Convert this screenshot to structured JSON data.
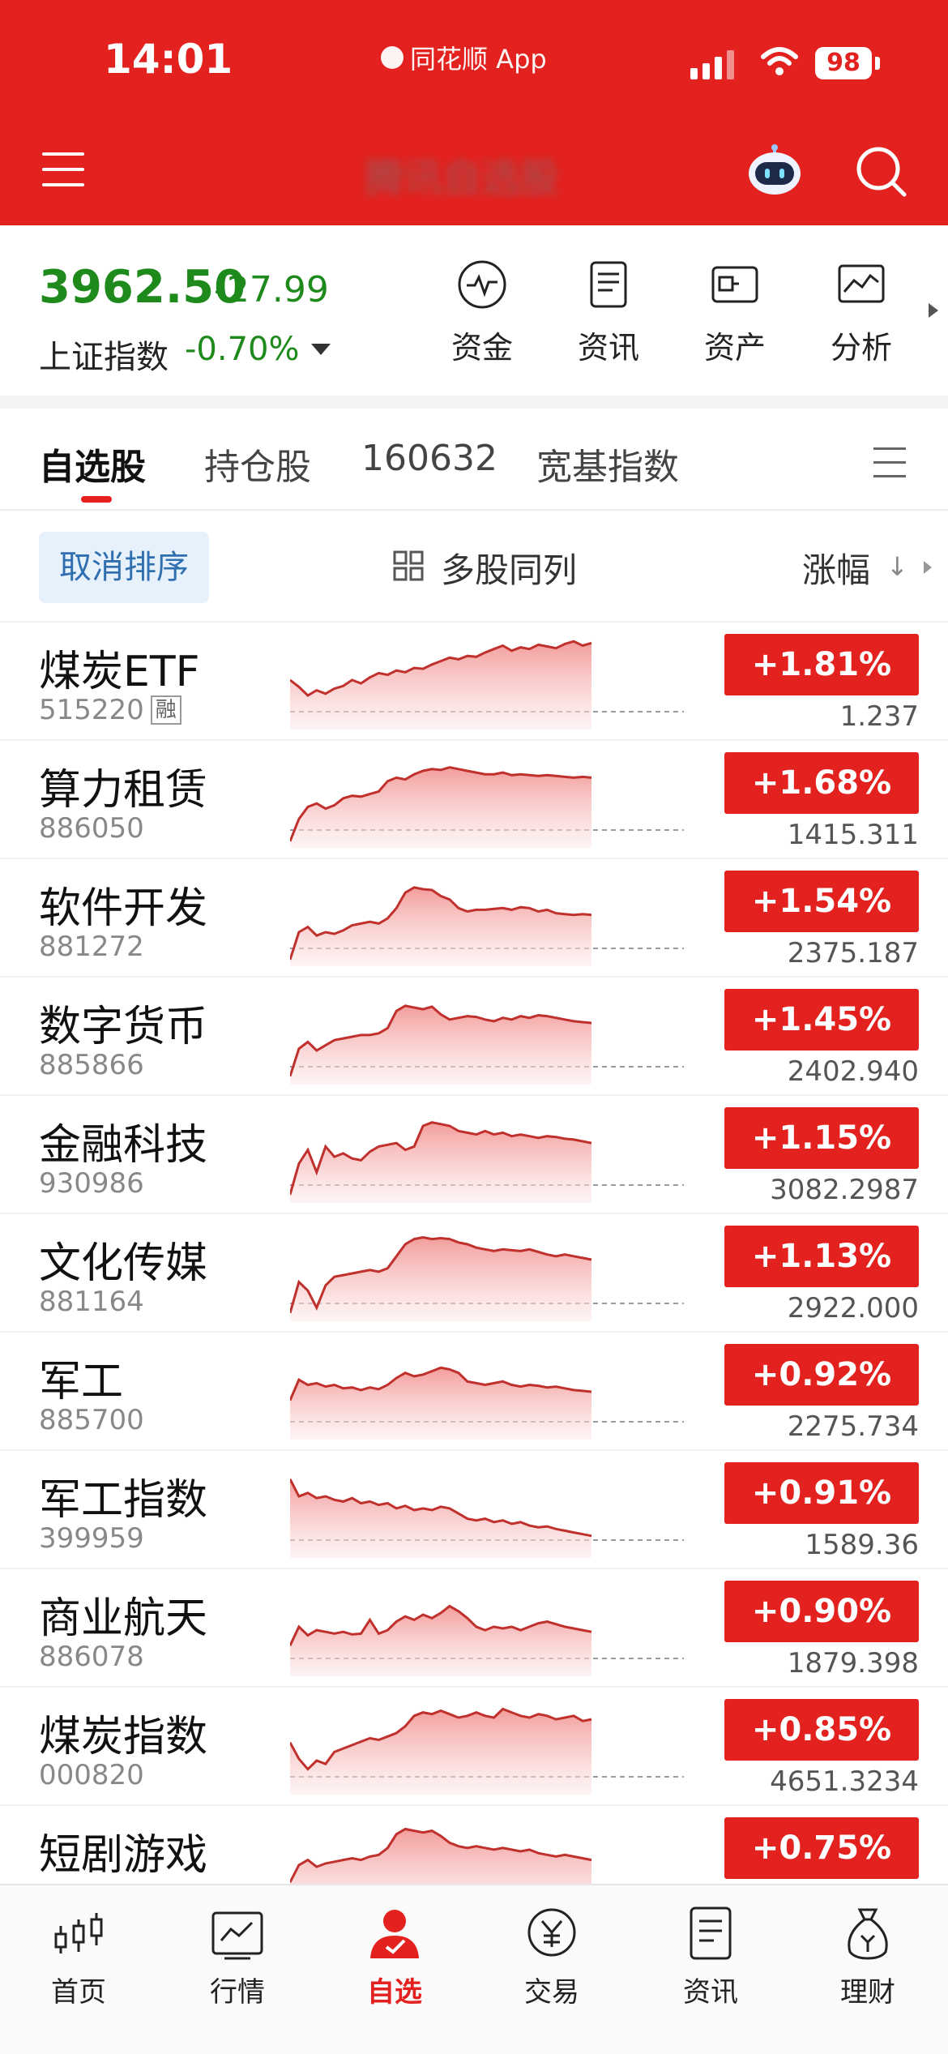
{
  "status_bar": {
    "time": "14:01",
    "app": "同花顺 App",
    "battery": "98"
  },
  "header": {
    "title": "腾讯自选股"
  },
  "index": {
    "price": "3962.50",
    "change": "-27.99",
    "name": "上证指数",
    "pct": "-0.70%"
  },
  "shortcuts": [
    {
      "label": "资金",
      "icon": "pulse-icon"
    },
    {
      "label": "资讯",
      "icon": "document-icon"
    },
    {
      "label": "资产",
      "icon": "wallet-icon"
    },
    {
      "label": "分析",
      "icon": "chart-icon"
    }
  ],
  "tabs": [
    {
      "label": "自选股",
      "active": true
    },
    {
      "label": "持仓股"
    },
    {
      "label": "160632"
    },
    {
      "label": "宽基指数"
    }
  ],
  "sort_bar": {
    "cancel": "取消排序",
    "multi": "多股同列",
    "sort_label": "涨幅",
    "sort_arrow": "↓"
  },
  "stocks": [
    {
      "name": "煤炭ETF",
      "code": "515220",
      "badge": "融",
      "pct": "+1.81%",
      "price": "1.237",
      "series": [
        0.52,
        0.44,
        0.34,
        0.4,
        0.36,
        0.42,
        0.45,
        0.52,
        0.48,
        0.55,
        0.6,
        0.58,
        0.63,
        0.61,
        0.66,
        0.65,
        0.7,
        0.74,
        0.78,
        0.76,
        0.8,
        0.79,
        0.84,
        0.88,
        0.92,
        0.86,
        0.9,
        0.88,
        0.93,
        0.91,
        0.89,
        0.94,
        0.97,
        0.92,
        0.95
      ]
    },
    {
      "name": "算力租赁",
      "code": "886050",
      "pct": "+1.68%",
      "price": "1415.311",
      "series": [
        0.02,
        0.28,
        0.42,
        0.46,
        0.4,
        0.44,
        0.52,
        0.55,
        0.54,
        0.57,
        0.6,
        0.72,
        0.76,
        0.74,
        0.8,
        0.84,
        0.86,
        0.85,
        0.88,
        0.86,
        0.84,
        0.82,
        0.8,
        0.8,
        0.82,
        0.79,
        0.8,
        0.79,
        0.78,
        0.79,
        0.78,
        0.77,
        0.76,
        0.77,
        0.76
      ]
    },
    {
      "name": "软件开发",
      "code": "881272",
      "pct": "+1.54%",
      "price": "2375.187",
      "series": [
        0.02,
        0.34,
        0.4,
        0.3,
        0.34,
        0.32,
        0.36,
        0.42,
        0.44,
        0.46,
        0.44,
        0.5,
        0.62,
        0.8,
        0.86,
        0.84,
        0.83,
        0.76,
        0.72,
        0.62,
        0.58,
        0.6,
        0.6,
        0.61,
        0.62,
        0.6,
        0.63,
        0.62,
        0.58,
        0.6,
        0.56,
        0.55,
        0.54,
        0.55,
        0.54
      ]
    },
    {
      "name": "数字货币",
      "code": "885866",
      "pct": "+1.45%",
      "price": "2402.940",
      "series": [
        0.04,
        0.36,
        0.44,
        0.34,
        0.4,
        0.46,
        0.48,
        0.5,
        0.52,
        0.52,
        0.54,
        0.6,
        0.8,
        0.86,
        0.84,
        0.82,
        0.85,
        0.76,
        0.7,
        0.72,
        0.74,
        0.73,
        0.7,
        0.68,
        0.72,
        0.7,
        0.74,
        0.72,
        0.75,
        0.74,
        0.72,
        0.7,
        0.68,
        0.67,
        0.66
      ]
    },
    {
      "name": "金融科技",
      "code": "930986",
      "pct": "+1.15%",
      "price": "3082.2987",
      "series": [
        0.04,
        0.4,
        0.56,
        0.3,
        0.6,
        0.48,
        0.52,
        0.46,
        0.44,
        0.54,
        0.6,
        0.62,
        0.64,
        0.56,
        0.6,
        0.84,
        0.88,
        0.86,
        0.84,
        0.78,
        0.76,
        0.74,
        0.78,
        0.74,
        0.76,
        0.72,
        0.74,
        0.72,
        0.7,
        0.72,
        0.71,
        0.69,
        0.68,
        0.66,
        0.64
      ]
    },
    {
      "name": "文化传媒",
      "code": "881164",
      "pct": "+1.13%",
      "price": "2922.000",
      "series": [
        0.04,
        0.4,
        0.3,
        0.1,
        0.36,
        0.46,
        0.48,
        0.5,
        0.52,
        0.54,
        0.52,
        0.56,
        0.7,
        0.84,
        0.9,
        0.92,
        0.9,
        0.91,
        0.9,
        0.86,
        0.84,
        0.8,
        0.78,
        0.76,
        0.78,
        0.77,
        0.76,
        0.78,
        0.75,
        0.72,
        0.7,
        0.72,
        0.7,
        0.68,
        0.66
      ]
    },
    {
      "name": "军工",
      "code": "885700",
      "pct": "+0.92%",
      "price": "2275.734",
      "series": [
        0.4,
        0.64,
        0.58,
        0.6,
        0.56,
        0.58,
        0.54,
        0.55,
        0.52,
        0.55,
        0.53,
        0.58,
        0.66,
        0.72,
        0.68,
        0.7,
        0.74,
        0.78,
        0.76,
        0.72,
        0.62,
        0.6,
        0.58,
        0.6,
        0.62,
        0.58,
        0.56,
        0.58,
        0.57,
        0.55,
        0.56,
        0.54,
        0.52,
        0.51,
        0.5
      ]
    },
    {
      "name": "军工指数",
      "code": "399959",
      "pct": "+0.91%",
      "price": "1589.36",
      "series": [
        0.86,
        0.66,
        0.7,
        0.64,
        0.66,
        0.62,
        0.6,
        0.64,
        0.58,
        0.6,
        0.56,
        0.58,
        0.52,
        0.55,
        0.5,
        0.52,
        0.5,
        0.54,
        0.52,
        0.46,
        0.4,
        0.38,
        0.4,
        0.36,
        0.38,
        0.34,
        0.36,
        0.32,
        0.3,
        0.31,
        0.28,
        0.26,
        0.24,
        0.22,
        0.2
      ]
    },
    {
      "name": "商业航天",
      "code": "886078",
      "pct": "+0.90%",
      "price": "1879.398",
      "series": [
        0.3,
        0.52,
        0.42,
        0.48,
        0.46,
        0.44,
        0.46,
        0.43,
        0.44,
        0.6,
        0.44,
        0.48,
        0.58,
        0.64,
        0.6,
        0.66,
        0.62,
        0.68,
        0.76,
        0.7,
        0.62,
        0.52,
        0.48,
        0.52,
        0.5,
        0.52,
        0.48,
        0.52,
        0.56,
        0.58,
        0.55,
        0.52,
        0.5,
        0.48,
        0.46
      ]
    },
    {
      "name": "煤炭指数",
      "code": "000820",
      "pct": "+0.85%",
      "price": "4651.3234",
      "series": [
        0.55,
        0.36,
        0.24,
        0.34,
        0.3,
        0.44,
        0.48,
        0.52,
        0.56,
        0.6,
        0.58,
        0.62,
        0.66,
        0.74,
        0.86,
        0.9,
        0.88,
        0.92,
        0.88,
        0.84,
        0.86,
        0.9,
        0.86,
        0.84,
        0.94,
        0.9,
        0.86,
        0.84,
        0.88,
        0.86,
        0.82,
        0.84,
        0.86,
        0.8,
        0.82
      ]
    },
    {
      "name": "短剧游戏",
      "code": "",
      "pct": "+0.75%",
      "price": "",
      "series": [
        0.3,
        0.5,
        0.56,
        0.48,
        0.52,
        0.54,
        0.56,
        0.58,
        0.56,
        0.6,
        0.62,
        0.7,
        0.86,
        0.92,
        0.9,
        0.88,
        0.9,
        0.84,
        0.76,
        0.72,
        0.7,
        0.72,
        0.7,
        0.68,
        0.7,
        0.68,
        0.66,
        0.68,
        0.64,
        0.62,
        0.6,
        0.62,
        0.6,
        0.58,
        0.56
      ]
    }
  ],
  "bottom_nav": [
    {
      "label": "首页",
      "icon": "candlestick-icon"
    },
    {
      "label": "行情",
      "icon": "market-chart-icon"
    },
    {
      "label": "自选",
      "icon": "user-check-icon",
      "active": true
    },
    {
      "label": "交易",
      "icon": "yen-icon"
    },
    {
      "label": "资讯",
      "icon": "news-icon"
    },
    {
      "label": "理财",
      "icon": "money-bag-icon"
    }
  ],
  "colors": {
    "brand_red": "#e3211f",
    "down_green": "#1f8a1c",
    "link_blue": "#2f6fb0"
  }
}
